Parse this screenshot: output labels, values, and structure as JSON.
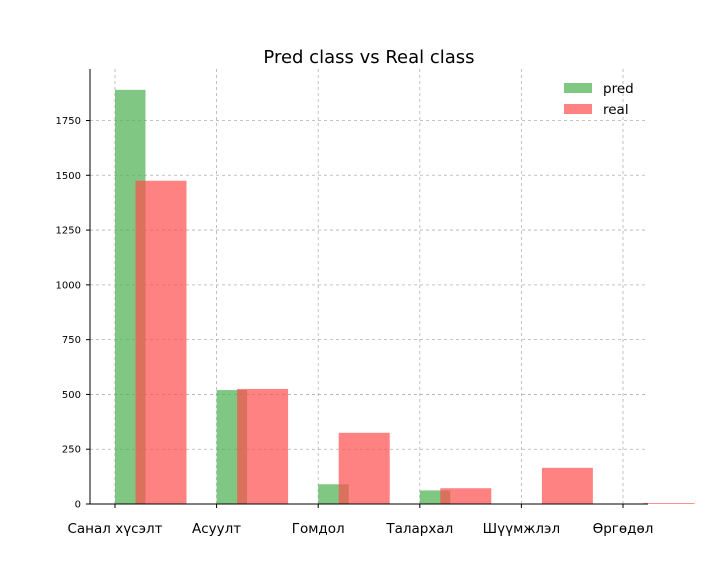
{
  "chart_data": {
    "type": "bar",
    "title": "Pred class vs Real class",
    "xlabel": "",
    "ylabel": "",
    "categories": [
      "Санал хүсэлт",
      "Асуулт",
      "Гомдол",
      "Талархал",
      "Шүүмжлэл",
      "Өргөдөл"
    ],
    "series": [
      {
        "name": "pred",
        "color": "#4caf50",
        "opacity": 0.7,
        "values": [
          1890,
          520,
          90,
          62,
          0,
          0
        ]
      },
      {
        "name": "real",
        "color": "#ff4d4d",
        "opacity": 0.7,
        "values": [
          1475,
          525,
          325,
          72,
          165,
          4
        ]
      }
    ],
    "yticks": [
      0,
      250,
      500,
      750,
      1000,
      1250,
      1500,
      1750
    ],
    "ylim": [
      0,
      1985
    ],
    "grid": true,
    "legend_position": "top-right"
  }
}
